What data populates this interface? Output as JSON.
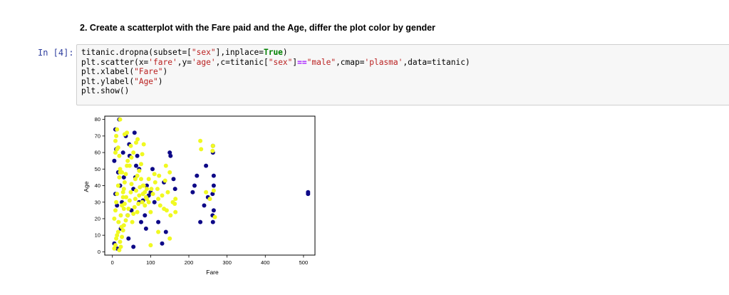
{
  "markdown": {
    "heading": "2. Create a scatterplot with the Fare paid and the Age, differ the plot color by gender"
  },
  "code_cell": {
    "prompt": "In [4]:",
    "lines": [
      [
        {
          "t": "titanic.dropna(subset=[",
          "c": ""
        },
        {
          "t": "\"sex\"",
          "c": "st"
        },
        {
          "t": "],inplace=",
          "c": ""
        },
        {
          "t": "True",
          "c": "kw"
        },
        {
          "t": ")",
          "c": ""
        }
      ],
      [
        {
          "t": "plt.scatter(x=",
          "c": ""
        },
        {
          "t": "'fare'",
          "c": "st"
        },
        {
          "t": ",y=",
          "c": ""
        },
        {
          "t": "'age'",
          "c": "st"
        },
        {
          "t": ",c=titanic[",
          "c": ""
        },
        {
          "t": "\"sex\"",
          "c": "st"
        },
        {
          "t": "]",
          "c": ""
        },
        {
          "t": "==",
          "c": "op"
        },
        {
          "t": "\"male\"",
          "c": "st"
        },
        {
          "t": ",cmap=",
          "c": ""
        },
        {
          "t": "'plasma'",
          "c": "st"
        },
        {
          "t": ",data=titanic)",
          "c": ""
        }
      ],
      [
        {
          "t": "plt.xlabel(",
          "c": ""
        },
        {
          "t": "\"Fare\"",
          "c": "st"
        },
        {
          "t": ")",
          "c": ""
        }
      ],
      [
        {
          "t": "plt.ylabel(",
          "c": ""
        },
        {
          "t": "\"Age\"",
          "c": "st"
        },
        {
          "t": ")",
          "c": ""
        }
      ],
      [
        {
          "t": "plt.show()",
          "c": ""
        }
      ]
    ]
  },
  "colors": {
    "female": "#f0f921",
    "male": "#0d0887",
    "prompt": "#303F9F"
  },
  "chart_data": {
    "type": "scatter",
    "xlabel": "Fare",
    "ylabel": "Age",
    "xlim": [
      -20,
      530
    ],
    "ylim": [
      -2,
      82
    ],
    "xticks": [
      0,
      100,
      200,
      300,
      400,
      500
    ],
    "yticks": [
      0,
      10,
      20,
      30,
      40,
      50,
      60,
      70,
      80
    ],
    "grid": false,
    "series": [
      {
        "values": [
          [
            8,
            35
          ],
          [
            12,
            28
          ],
          [
            25,
            30
          ],
          [
            30,
            45
          ],
          [
            40,
            22
          ],
          [
            55,
            38
          ],
          [
            65,
            58
          ],
          [
            70,
            50
          ],
          [
            80,
            31
          ],
          [
            90,
            40
          ],
          [
            100,
            36
          ],
          [
            110,
            30
          ],
          [
            135,
            42
          ],
          [
            150,
            60
          ],
          [
            152,
            58
          ],
          [
            160,
            44
          ],
          [
            164,
            38
          ],
          [
            210,
            36
          ],
          [
            215,
            40
          ],
          [
            221,
            46
          ],
          [
            245,
            52
          ],
          [
            263,
            60
          ],
          [
            263,
            64
          ],
          [
            265,
            46
          ],
          [
            265,
            40
          ],
          [
            265,
            25
          ],
          [
            263,
            18
          ],
          [
            262,
            22
          ],
          [
            262,
            35
          ],
          [
            512,
            36
          ],
          [
            512,
            35
          ],
          [
            5,
            55
          ],
          [
            10,
            62
          ],
          [
            15,
            48
          ],
          [
            20,
            40
          ],
          [
            35,
            70
          ],
          [
            45,
            58
          ],
          [
            50,
            25
          ],
          [
            60,
            45
          ],
          [
            70,
            30
          ],
          [
            85,
            22
          ],
          [
            95,
            34
          ],
          [
            105,
            50
          ],
          [
            120,
            18
          ],
          [
            140,
            12
          ],
          [
            230,
            18
          ],
          [
            240,
            28
          ],
          [
            250,
            33
          ],
          [
            5,
            5
          ],
          [
            12,
            2
          ],
          [
            22,
            14
          ],
          [
            44,
            65
          ],
          [
            58,
            72
          ],
          [
            18,
            80
          ],
          [
            8,
            74
          ],
          [
            28,
            60
          ],
          [
            62,
            52
          ],
          [
            88,
            14
          ],
          [
            75,
            18
          ],
          [
            130,
            5
          ],
          [
            42,
            8
          ],
          [
            55,
            3
          ]
        ]
      },
      {
        "values": [
          [
            5,
            20
          ],
          [
            8,
            25
          ],
          [
            10,
            30
          ],
          [
            12,
            35
          ],
          [
            15,
            40
          ],
          [
            18,
            45
          ],
          [
            20,
            50
          ],
          [
            22,
            22
          ],
          [
            25,
            28
          ],
          [
            28,
            33
          ],
          [
            30,
            38
          ],
          [
            32,
            42
          ],
          [
            35,
            47
          ],
          [
            38,
            52
          ],
          [
            40,
            55
          ],
          [
            42,
            26
          ],
          [
            45,
            31
          ],
          [
            48,
            36
          ],
          [
            50,
            41
          ],
          [
            52,
            18
          ],
          [
            55,
            23
          ],
          [
            58,
            27
          ],
          [
            60,
            32
          ],
          [
            62,
            37
          ],
          [
            65,
            24
          ],
          [
            68,
            29
          ],
          [
            70,
            34
          ],
          [
            72,
            39
          ],
          [
            75,
            44
          ],
          [
            78,
            30
          ],
          [
            80,
            35
          ],
          [
            82,
            40
          ],
          [
            85,
            28
          ],
          [
            88,
            33
          ],
          [
            90,
            38
          ],
          [
            8,
            60
          ],
          [
            12,
            62
          ],
          [
            15,
            63
          ],
          [
            18,
            58
          ],
          [
            20,
            48
          ],
          [
            25,
            48
          ],
          [
            30,
            26
          ],
          [
            35,
            19
          ],
          [
            40,
            22
          ],
          [
            45,
            52
          ],
          [
            50,
            57
          ],
          [
            55,
            60
          ],
          [
            60,
            44
          ],
          [
            65,
            46
          ],
          [
            70,
            49
          ],
          [
            75,
            53
          ],
          [
            80,
            40
          ],
          [
            85,
            36
          ],
          [
            90,
            32
          ],
          [
            95,
            30
          ],
          [
            100,
            24
          ],
          [
            5,
            2
          ],
          [
            8,
            4
          ],
          [
            10,
            8
          ],
          [
            12,
            10
          ],
          [
            15,
            12
          ],
          [
            18,
            1
          ],
          [
            20,
            6
          ],
          [
            22,
            3
          ],
          [
            25,
            9
          ],
          [
            28,
            13
          ],
          [
            30,
            16
          ],
          [
            8,
            67
          ],
          [
            10,
            70
          ],
          [
            12,
            74
          ],
          [
            20,
            80
          ],
          [
            32,
            71
          ],
          [
            38,
            72
          ],
          [
            48,
            64
          ],
          [
            78,
            59
          ],
          [
            82,
            65
          ],
          [
            110,
            47
          ],
          [
            112,
            42
          ],
          [
            118,
            38
          ],
          [
            120,
            32
          ],
          [
            122,
            46
          ],
          [
            125,
            28
          ],
          [
            130,
            34
          ],
          [
            135,
            26
          ],
          [
            140,
            52
          ],
          [
            145,
            36
          ],
          [
            150,
            48
          ],
          [
            152,
            22
          ],
          [
            158,
            30
          ],
          [
            163,
            29
          ],
          [
            165,
            32
          ],
          [
            165,
            24
          ],
          [
            230,
            67
          ],
          [
            232,
            62
          ],
          [
            245,
            36
          ],
          [
            255,
            32
          ],
          [
            262,
            61
          ],
          [
            263,
            64
          ],
          [
            265,
            37
          ],
          [
            268,
            21
          ],
          [
            150,
            8
          ],
          [
            120,
            12
          ],
          [
            100,
            4
          ],
          [
            142,
            25
          ],
          [
            138,
            43
          ],
          [
            95,
            44
          ],
          [
            102,
            38
          ],
          [
            106,
            35
          ],
          [
            62,
            66
          ],
          [
            66,
            68
          ],
          [
            28,
            36
          ],
          [
            32,
            29
          ],
          [
            36,
            33
          ],
          [
            16,
            18
          ],
          [
            24,
            15
          ]
        ]
      }
    ]
  }
}
